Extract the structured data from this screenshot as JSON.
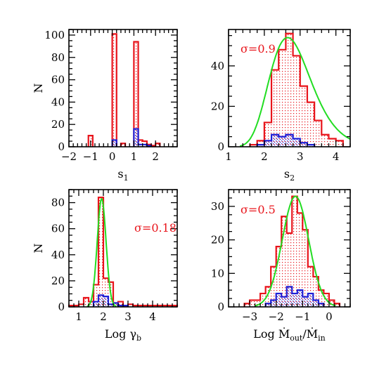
{
  "colors": {
    "full_sample": "#e8141b",
    "subsample": "#1f1fd6",
    "fit": "#22dd22",
    "axis": "#000000"
  },
  "chart_data": [
    {
      "type": "histogram",
      "xlabel_main": "s",
      "xlabel_sub": "1",
      "ylabel": "N",
      "xlim": [
        -2,
        3
      ],
      "ylim": [
        0,
        105
      ],
      "xticks": [
        -2,
        -1,
        0,
        1,
        2
      ],
      "yticks": [
        0,
        20,
        40,
        60,
        80,
        100
      ],
      "series": [
        {
          "role": "full",
          "bins": [
            [
              -1.1,
              -0.9,
              10
            ],
            [
              0.0,
              0.2,
              101
            ],
            [
              0.4,
              0.6,
              3
            ],
            [
              1.0,
              1.2,
              94
            ],
            [
              1.2,
              1.4,
              6
            ],
            [
              1.4,
              1.6,
              5
            ],
            [
              1.6,
              1.8,
              2
            ],
            [
              1.8,
              2.0,
              1
            ],
            [
              2.0,
              2.2,
              3
            ]
          ]
        },
        {
          "role": "sub",
          "bins": [
            [
              0.0,
              0.2,
              6
            ],
            [
              1.0,
              1.2,
              16
            ],
            [
              1.2,
              1.4,
              2
            ],
            [
              1.4,
              1.6,
              2
            ],
            [
              1.6,
              1.8,
              1
            ]
          ]
        }
      ]
    },
    {
      "type": "histogram",
      "xlabel_main": "s",
      "xlabel_sub": "2",
      "ylabel": "",
      "sigma_text": "σ=0.9",
      "xlim": [
        1,
        4.4
      ],
      "ylim": [
        0,
        58
      ],
      "xticks": [
        1,
        2,
        3,
        4
      ],
      "yticks": [
        0,
        20,
        40
      ],
      "series": [
        {
          "role": "full",
          "bins": [
            [
              1.6,
              1.8,
              1
            ],
            [
              1.8,
              2.0,
              3
            ],
            [
              2.0,
              2.2,
              12
            ],
            [
              2.2,
              2.4,
              38
            ],
            [
              2.4,
              2.6,
              48
            ],
            [
              2.6,
              2.8,
              56
            ],
            [
              2.8,
              3.0,
              45
            ],
            [
              3.0,
              3.2,
              30
            ],
            [
              3.2,
              3.4,
              22
            ],
            [
              3.4,
              3.6,
              13
            ],
            [
              3.6,
              3.8,
              6
            ],
            [
              3.8,
              4.0,
              4
            ],
            [
              4.0,
              4.2,
              3
            ]
          ]
        },
        {
          "role": "sub",
          "bins": [
            [
              1.8,
              2.0,
              1
            ],
            [
              2.0,
              2.2,
              3
            ],
            [
              2.2,
              2.4,
              6
            ],
            [
              2.4,
              2.6,
              5
            ],
            [
              2.6,
              2.8,
              6
            ],
            [
              2.8,
              3.0,
              4
            ],
            [
              3.0,
              3.2,
              2
            ],
            [
              3.2,
              3.4,
              1
            ]
          ]
        }
      ],
      "fit": {
        "type": "lognormal",
        "mu": 2.65,
        "sigma": 0.9,
        "peak": 54
      }
    },
    {
      "type": "histogram",
      "xlabel_main": "Log γ",
      "xlabel_sub": "b",
      "ylabel": "N",
      "sigma_text": "σ=0.18",
      "xlim": [
        0.6,
        5.0
      ],
      "ylim": [
        0,
        90
      ],
      "xticks": [
        1,
        2,
        3,
        4
      ],
      "yticks": [
        0,
        20,
        40,
        60,
        80
      ],
      "series": [
        {
          "role": "full",
          "bins": [
            [
              0.6,
              1.0,
              1
            ],
            [
              1.0,
              1.2,
              2
            ],
            [
              1.2,
              1.4,
              7
            ],
            [
              1.4,
              1.6,
              4
            ],
            [
              1.6,
              1.8,
              17
            ],
            [
              1.8,
              2.0,
              84
            ],
            [
              2.0,
              2.2,
              22
            ],
            [
              2.2,
              2.4,
              19
            ],
            [
              2.4,
              2.6,
              3
            ],
            [
              2.6,
              2.8,
              4
            ],
            [
              2.8,
              3.0,
              1
            ],
            [
              3.0,
              3.2,
              2
            ],
            [
              3.2,
              3.4,
              1
            ],
            [
              3.4,
              4.4,
              1
            ],
            [
              4.4,
              5.0,
              1
            ]
          ]
        },
        {
          "role": "sub",
          "bins": [
            [
              1.6,
              1.8,
              4
            ],
            [
              1.8,
              2.0,
              9
            ],
            [
              2.0,
              2.2,
              8
            ],
            [
              2.2,
              2.4,
              2
            ],
            [
              2.4,
              2.6,
              3
            ],
            [
              2.6,
              2.8,
              1
            ],
            [
              2.8,
              3.0,
              1
            ]
          ]
        }
      ],
      "fit": {
        "type": "gaussian",
        "mu": 1.93,
        "sigma": 0.18,
        "peak": 83
      }
    },
    {
      "type": "histogram",
      "xlabel_main": "Log  Ṁ",
      "xlabel_sub1": "out",
      "xlabel_mid": "/Ṁ",
      "xlabel_sub2": "in",
      "ylabel": "",
      "sigma_text": "σ=0.5",
      "xlim": [
        -3.8,
        0.8
      ],
      "ylim": [
        0,
        35
      ],
      "xticks": [
        -3,
        -2,
        -1,
        0
      ],
      "yticks": [
        0,
        10,
        20,
        30
      ],
      "series": [
        {
          "role": "full",
          "bins": [
            [
              -3.2,
              -3.0,
              1
            ],
            [
              -3.0,
              -2.8,
              2
            ],
            [
              -2.8,
              -2.6,
              2
            ],
            [
              -2.6,
              -2.4,
              4
            ],
            [
              -2.4,
              -2.2,
              6
            ],
            [
              -2.2,
              -2.0,
              12
            ],
            [
              -2.0,
              -1.8,
              18
            ],
            [
              -1.8,
              -1.6,
              27
            ],
            [
              -1.6,
              -1.4,
              22
            ],
            [
              -1.4,
              -1.2,
              33
            ],
            [
              -1.2,
              -1.0,
              28
            ],
            [
              -1.0,
              -0.8,
              23
            ],
            [
              -0.8,
              -0.6,
              12
            ],
            [
              -0.6,
              -0.4,
              9
            ],
            [
              -0.4,
              -0.2,
              5
            ],
            [
              -0.2,
              0.0,
              4
            ],
            [
              0.0,
              0.2,
              2
            ],
            [
              0.2,
              0.4,
              1
            ]
          ]
        },
        {
          "role": "sub",
          "bins": [
            [
              -2.4,
              -2.2,
              1
            ],
            [
              -2.2,
              -2.0,
              2
            ],
            [
              -2.0,
              -1.8,
              4
            ],
            [
              -1.8,
              -1.6,
              3
            ],
            [
              -1.6,
              -1.4,
              6
            ],
            [
              -1.4,
              -1.2,
              4
            ],
            [
              -1.2,
              -1.0,
              5
            ],
            [
              -1.0,
              -0.8,
              3
            ],
            [
              -0.8,
              -0.6,
              4
            ],
            [
              -0.6,
              -0.4,
              2
            ],
            [
              -0.4,
              -0.2,
              1
            ]
          ]
        }
      ],
      "fit": {
        "type": "gaussian",
        "mu": -1.27,
        "sigma": 0.5,
        "peak": 33
      }
    }
  ]
}
